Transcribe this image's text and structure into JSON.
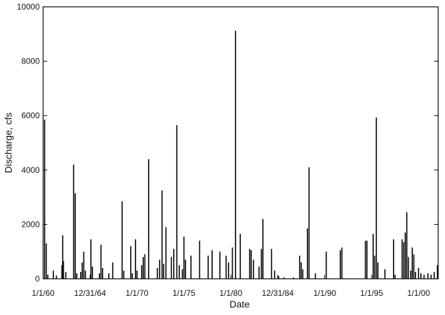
{
  "chart_data": {
    "type": "bar",
    "title": "",
    "xlabel": "Date",
    "ylabel": "Discharge, cfs",
    "ylim": [
      0,
      10000
    ],
    "yticks": [
      0,
      2000,
      4000,
      6000,
      8000,
      10000
    ],
    "xlim": [
      "1960-01-01",
      "2002-02-01"
    ],
    "xticks": [
      {
        "date": "1960-01-01",
        "label": "1/1/60"
      },
      {
        "date": "1964-12-31",
        "label": "12/31/64"
      },
      {
        "date": "1970-01-01",
        "label": "1/1/70"
      },
      {
        "date": "1975-01-01",
        "label": "1/1/75"
      },
      {
        "date": "1980-01-01",
        "label": "1/1/80"
      },
      {
        "date": "1984-12-31",
        "label": "12/31/84"
      },
      {
        "date": "1990-01-01",
        "label": "1/1/90"
      },
      {
        "date": "1995-01-01",
        "label": "1/1/95"
      },
      {
        "date": "2000-01-01",
        "label": "1/1/00"
      }
    ],
    "grid": false,
    "legend": "none",
    "colors": {
      "bars": "#000000",
      "axes": "#000000",
      "background": "#ffffff"
    },
    "series": [
      {
        "points": [
          [
            "1960-03-01",
            5850
          ],
          [
            "1960-05-01",
            1300
          ],
          [
            "1960-07-01",
            150
          ],
          [
            "1961-02-01",
            300
          ],
          [
            "1961-06-01",
            120
          ],
          [
            "1962-01-01",
            500
          ],
          [
            "1962-02-01",
            1600
          ],
          [
            "1962-03-01",
            650
          ],
          [
            "1962-06-01",
            250
          ],
          [
            "1963-04-01",
            4200
          ],
          [
            "1963-06-01",
            3150
          ],
          [
            "1963-08-01",
            200
          ],
          [
            "1964-01-01",
            250
          ],
          [
            "1964-03-01",
            600
          ],
          [
            "1964-05-01",
            1000
          ],
          [
            "1964-07-01",
            300
          ],
          [
            "1965-02-01",
            1450
          ],
          [
            "1965-04-01",
            450
          ],
          [
            "1966-01-01",
            200
          ],
          [
            "1966-03-01",
            1250
          ],
          [
            "1966-05-01",
            400
          ],
          [
            "1967-01-01",
            200
          ],
          [
            "1967-06-01",
            600
          ],
          [
            "1968-06-01",
            2850
          ],
          [
            "1968-08-01",
            300
          ],
          [
            "1969-05-01",
            1200
          ],
          [
            "1969-07-01",
            200
          ],
          [
            "1969-11-01",
            1450
          ],
          [
            "1970-01-01",
            300
          ],
          [
            "1970-07-01",
            500
          ],
          [
            "1970-09-01",
            800
          ],
          [
            "1970-11-01",
            900
          ],
          [
            "1971-04-01",
            4400
          ],
          [
            "1972-03-01",
            400
          ],
          [
            "1972-06-01",
            700
          ],
          [
            "1972-09-01",
            3250
          ],
          [
            "1972-11-01",
            550
          ],
          [
            "1973-02-01",
            1900
          ],
          [
            "1973-09-01",
            800
          ],
          [
            "1973-12-01",
            1100
          ],
          [
            "1974-04-01",
            5650
          ],
          [
            "1974-07-01",
            500
          ],
          [
            "1974-11-01",
            350
          ],
          [
            "1975-01-01",
            1550
          ],
          [
            "1975-03-01",
            700
          ],
          [
            "1975-10-01",
            850
          ],
          [
            "1976-09-01",
            1400
          ],
          [
            "1977-08-01",
            850
          ],
          [
            "1978-01-01",
            1050
          ],
          [
            "1978-11-01",
            1000
          ],
          [
            "1979-07-01",
            850
          ],
          [
            "1979-10-01",
            600
          ],
          [
            "1980-03-01",
            1150
          ],
          [
            "1980-07-01",
            9120
          ],
          [
            "1981-01-01",
            1650
          ],
          [
            "1982-01-01",
            1100
          ],
          [
            "1982-03-01",
            1050
          ],
          [
            "1982-06-01",
            700
          ],
          [
            "1983-01-01",
            450
          ],
          [
            "1983-04-01",
            1100
          ],
          [
            "1983-06-01",
            2200
          ],
          [
            "1984-05-01",
            1100
          ],
          [
            "1984-09-01",
            300
          ],
          [
            "1985-02-01",
            100
          ],
          [
            "1985-09-01",
            50
          ],
          [
            "1986-09-01",
            50
          ],
          [
            "1987-05-01",
            850
          ],
          [
            "1987-07-01",
            600
          ],
          [
            "1987-09-01",
            350
          ],
          [
            "1988-03-01",
            1850
          ],
          [
            "1988-05-01",
            4100
          ],
          [
            "1989-01-01",
            200
          ],
          [
            "1990-03-01",
            1000
          ],
          [
            "1991-09-01",
            1050
          ],
          [
            "1991-11-01",
            1150
          ],
          [
            "1994-05-01",
            1400
          ],
          [
            "1994-07-01",
            1400
          ],
          [
            "1995-03-01",
            1650
          ],
          [
            "1995-05-01",
            850
          ],
          [
            "1995-07-01",
            5930
          ],
          [
            "1995-09-01",
            600
          ],
          [
            "1996-06-01",
            350
          ],
          [
            "1997-05-01",
            1450
          ],
          [
            "1997-07-01",
            150
          ],
          [
            "1998-04-01",
            1450
          ],
          [
            "1998-06-01",
            1350
          ],
          [
            "1998-08-01",
            1700
          ],
          [
            "1998-10-01",
            2450
          ],
          [
            "1998-12-01",
            800
          ],
          [
            "1999-03-01",
            300
          ],
          [
            "1999-05-01",
            1150
          ],
          [
            "1999-07-01",
            900
          ],
          [
            "1999-09-01",
            250
          ],
          [
            "2000-01-01",
            400
          ],
          [
            "2000-04-01",
            200
          ],
          [
            "2000-08-01",
            150
          ],
          [
            "2001-01-01",
            200
          ],
          [
            "2001-05-01",
            150
          ],
          [
            "2001-09-01",
            250
          ],
          [
            "2002-01-01",
            500
          ]
        ]
      }
    ]
  }
}
